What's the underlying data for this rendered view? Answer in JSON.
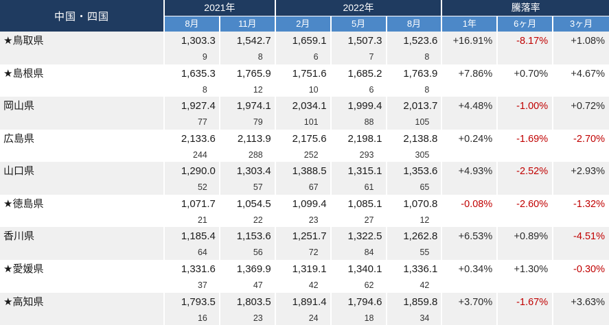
{
  "header": {
    "region_label": "中国・四国",
    "groups": [
      {
        "label": "2021年",
        "span": 2
      },
      {
        "label": "2022年",
        "span": 3
      },
      {
        "label": "騰落率",
        "span": 3
      }
    ],
    "sub_headers": [
      "8月",
      "11月",
      "2月",
      "5月",
      "8月",
      "1年",
      "6ヶ月",
      "3ヶ月"
    ]
  },
  "colors": {
    "header_dark_navy": "#1f3b60",
    "header_blue": "#4c88c8",
    "row_alt_gray": "#f0f0f0",
    "negative_red": "#c00000",
    "text_dark": "#1a1a1a",
    "header_text": "#ffffff"
  },
  "chart_data": {
    "type": "table",
    "title": "中国・四国",
    "column_groups": [
      {
        "label": "2021年",
        "columns": [
          "8月",
          "11月"
        ]
      },
      {
        "label": "2022年",
        "columns": [
          "2月",
          "5月",
          "8月"
        ]
      },
      {
        "label": "騰落率",
        "columns": [
          "1年",
          "6ヶ月",
          "3ヶ月"
        ]
      }
    ],
    "rows": [
      {
        "name": "★鳥取県",
        "values": [
          "1,303.3",
          "1,542.7",
          "1,659.1",
          "1,507.3",
          "1,523.6"
        ],
        "counts": [
          "9",
          "8",
          "6",
          "7",
          "8"
        ],
        "changes": [
          "+16.91%",
          "-8.17%",
          "+1.08%"
        ]
      },
      {
        "name": "★島根県",
        "values": [
          "1,635.3",
          "1,765.9",
          "1,751.6",
          "1,685.2",
          "1,763.9"
        ],
        "counts": [
          "8",
          "12",
          "10",
          "6",
          "8"
        ],
        "changes": [
          "+7.86%",
          "+0.70%",
          "+4.67%"
        ]
      },
      {
        "name": "岡山県",
        "values": [
          "1,927.4",
          "1,974.1",
          "2,034.1",
          "1,999.4",
          "2,013.7"
        ],
        "counts": [
          "77",
          "79",
          "101",
          "88",
          "105"
        ],
        "changes": [
          "+4.48%",
          "-1.00%",
          "+0.72%"
        ]
      },
      {
        "name": "広島県",
        "values": [
          "2,133.6",
          "2,113.9",
          "2,175.6",
          "2,198.1",
          "2,138.8"
        ],
        "counts": [
          "244",
          "288",
          "252",
          "293",
          "305"
        ],
        "changes": [
          "+0.24%",
          "-1.69%",
          "-2.70%"
        ]
      },
      {
        "name": "山口県",
        "values": [
          "1,290.0",
          "1,303.4",
          "1,388.5",
          "1,315.1",
          "1,353.6"
        ],
        "counts": [
          "52",
          "57",
          "67",
          "61",
          "65"
        ],
        "changes": [
          "+4.93%",
          "-2.52%",
          "+2.93%"
        ]
      },
      {
        "name": "★徳島県",
        "values": [
          "1,071.7",
          "1,054.5",
          "1,099.4",
          "1,085.1",
          "1,070.8"
        ],
        "counts": [
          "21",
          "22",
          "23",
          "27",
          "12"
        ],
        "changes": [
          "-0.08%",
          "-2.60%",
          "-1.32%"
        ]
      },
      {
        "name": "香川県",
        "values": [
          "1,185.4",
          "1,153.6",
          "1,251.7",
          "1,322.5",
          "1,262.8"
        ],
        "counts": [
          "64",
          "56",
          "72",
          "84",
          "55"
        ],
        "changes": [
          "+6.53%",
          "+0.89%",
          "-4.51%"
        ]
      },
      {
        "name": "★愛媛県",
        "values": [
          "1,331.6",
          "1,369.9",
          "1,319.1",
          "1,340.1",
          "1,336.1"
        ],
        "counts": [
          "37",
          "47",
          "42",
          "62",
          "42"
        ],
        "changes": [
          "+0.34%",
          "+1.30%",
          "-0.30%"
        ]
      },
      {
        "name": "★高知県",
        "values": [
          "1,793.5",
          "1,803.5",
          "1,891.4",
          "1,794.6",
          "1,859.8"
        ],
        "counts": [
          "16",
          "23",
          "24",
          "18",
          "34"
        ],
        "changes": [
          "+3.70%",
          "-1.67%",
          "+3.63%"
        ]
      }
    ]
  }
}
